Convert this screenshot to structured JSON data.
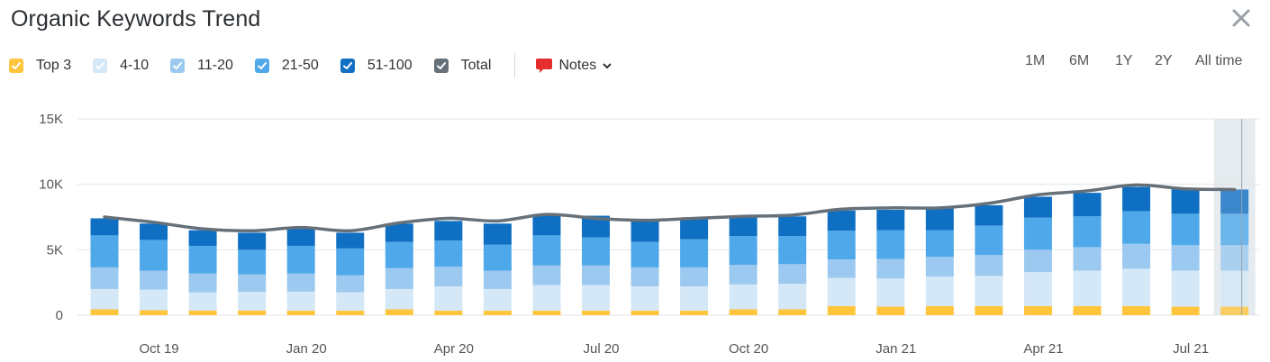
{
  "header": {
    "title": "Organic Keywords Trend",
    "close_icon": "close-icon"
  },
  "legend": [
    {
      "label": "Top 3",
      "color": "#ffc53d",
      "checked": true
    },
    {
      "label": "4-10",
      "color": "#d4e8f8",
      "checked": true
    },
    {
      "label": "11-20",
      "color": "#9cc9ef",
      "checked": true
    },
    {
      "label": "21-50",
      "color": "#4ea8ea",
      "checked": true
    },
    {
      "label": "51-100",
      "color": "#0f6fc2",
      "checked": true
    },
    {
      "label": "Total",
      "color": "#667079",
      "checked": true
    }
  ],
  "notes": {
    "label": "Notes",
    "icon": "speech-bubble-icon",
    "dropdown_icon": "chevron-down-icon",
    "color": "#e52d2d"
  },
  "periods": [
    {
      "label": "1M",
      "active": false
    },
    {
      "label": "6M",
      "active": false
    },
    {
      "label": "1Y",
      "active": false
    },
    {
      "label": "2Y",
      "active": true
    },
    {
      "label": "All time",
      "active": false
    }
  ],
  "chart_data": {
    "type": "bar",
    "stacked": true,
    "title": "Organic Keywords Trend",
    "xlabel": "",
    "ylabel": "",
    "ylim": [
      0,
      15000
    ],
    "y_ticks": [
      "0",
      "5K",
      "10K",
      "15K"
    ],
    "y_tick_values": [
      0,
      5000,
      10000,
      15000
    ],
    "x_tick_labels": [
      {
        "label": "Oct 19",
        "index": 1
      },
      {
        "label": "Jan 20",
        "index": 4
      },
      {
        "label": "Apr 20",
        "index": 7
      },
      {
        "label": "Jul 20",
        "index": 10
      },
      {
        "label": "Oct 20",
        "index": 13
      },
      {
        "label": "Jan 21",
        "index": 16
      },
      {
        "label": "Apr 21",
        "index": 19
      },
      {
        "label": "Jul 21",
        "index": 22
      }
    ],
    "highlighted_index": 23,
    "grid": true,
    "legend_position": "top-left",
    "series": [
      {
        "name": "Top 3",
        "color": "#ffc53d",
        "values": [
          450,
          380,
          360,
          360,
          350,
          350,
          450,
          350,
          350,
          350,
          350,
          350,
          350,
          450,
          450,
          700,
          650,
          700,
          700,
          700,
          700,
          700,
          650,
          650
        ]
      },
      {
        "name": "4-10",
        "color": "#d4e8f8",
        "values": [
          1550,
          1570,
          1380,
          1420,
          1450,
          1400,
          1550,
          1850,
          1650,
          1950,
          1950,
          1850,
          1850,
          1900,
          1950,
          2150,
          2150,
          2250,
          2300,
          2600,
          2700,
          2850,
          2750,
          2750
        ]
      },
      {
        "name": "11-20",
        "color": "#9cc9ef",
        "values": [
          1650,
          1450,
          1450,
          1340,
          1400,
          1300,
          1600,
          1500,
          1400,
          1500,
          1500,
          1450,
          1450,
          1500,
          1500,
          1400,
          1500,
          1500,
          1600,
          1700,
          1800,
          1900,
          1950,
          1950
        ]
      },
      {
        "name": "21-50",
        "color": "#4ea8ea",
        "values": [
          2450,
          2350,
          2100,
          1880,
          2100,
          2050,
          2000,
          2000,
          2000,
          2300,
          2150,
          1950,
          2150,
          2200,
          2150,
          2200,
          2200,
          2050,
          2250,
          2450,
          2350,
          2500,
          2400,
          2400
        ]
      },
      {
        "name": "51-100",
        "color": "#0f6fc2",
        "values": [
          1300,
          1250,
          1200,
          1300,
          1300,
          1200,
          1400,
          1500,
          1600,
          1600,
          1650,
          1600,
          1550,
          1550,
          1500,
          1550,
          1550,
          1650,
          1550,
          1600,
          1800,
          1850,
          1950,
          1850
        ]
      },
      {
        "name": "Total",
        "color": "#667079",
        "type": "line",
        "values": [
          7500,
          7100,
          6600,
          6450,
          6700,
          6450,
          7050,
          7400,
          7200,
          7700,
          7400,
          7250,
          7400,
          7550,
          7650,
          8100,
          8200,
          8200,
          8550,
          9200,
          9500,
          9950,
          9650,
          9600
        ]
      }
    ]
  }
}
